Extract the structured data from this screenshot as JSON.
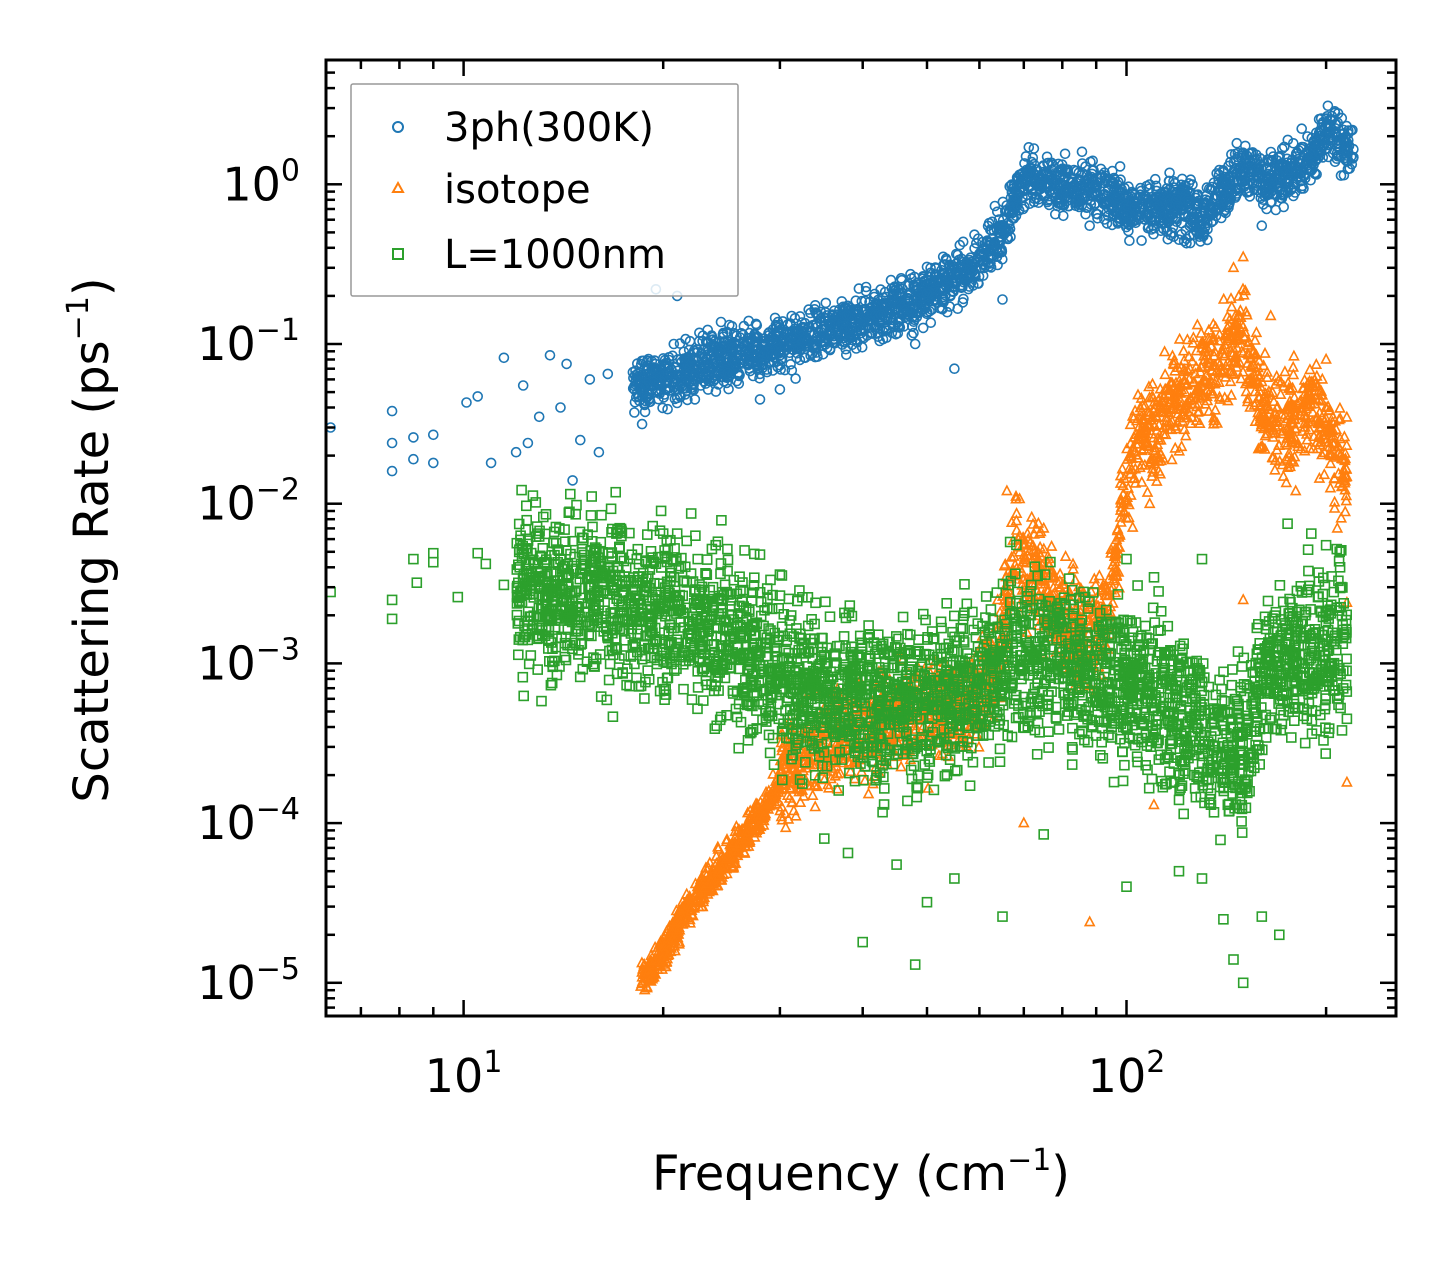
{
  "chart_data": {
    "type": "scatter",
    "xscale": "log",
    "yscale": "log",
    "xlim": [
      6.2,
      255
    ],
    "ylim": [
      6.2e-06,
      6.0
    ],
    "xlabel": {
      "main": "Frequency (cm",
      "sup": "−1",
      "end": ")"
    },
    "ylabel": {
      "main": "Scattering Rate (ps",
      "sup": "−1",
      "end": ")"
    },
    "xticks": [
      {
        "value": 10,
        "base": "10",
        "exp": "1"
      },
      {
        "value": 100,
        "base": "10",
        "exp": "2"
      }
    ],
    "yticks": [
      {
        "value": 1,
        "base": "10",
        "exp": "0"
      },
      {
        "value": 0.1,
        "base": "10",
        "exp": "−1"
      },
      {
        "value": 0.01,
        "base": "10",
        "exp": "−2"
      },
      {
        "value": 0.001,
        "base": "10",
        "exp": "−3"
      },
      {
        "value": 0.0001,
        "base": "10",
        "exp": "−4"
      },
      {
        "value": 1e-05,
        "base": "10",
        "exp": "−5"
      }
    ],
    "legend_position": "top-left",
    "series": [
      {
        "name": "3ph(300K)",
        "marker": "circle",
        "color": "#1f77b4",
        "trend": [
          [
            6.3,
            0.02
          ],
          [
            8,
            0.025
          ],
          [
            10,
            0.04
          ],
          [
            14,
            0.05
          ],
          [
            18,
            0.055
          ],
          [
            20,
            0.06
          ],
          [
            25,
            0.08
          ],
          [
            30,
            0.1
          ],
          [
            40,
            0.14
          ],
          [
            50,
            0.2
          ],
          [
            60,
            0.32
          ],
          [
            65,
            0.5
          ],
          [
            70,
            1.1
          ],
          [
            75,
            1.0
          ],
          [
            90,
            0.95
          ],
          [
            100,
            0.7
          ],
          [
            120,
            0.75
          ],
          [
            130,
            0.6
          ],
          [
            140,
            0.9
          ],
          [
            150,
            1.3
          ],
          [
            160,
            1.0
          ],
          [
            175,
            1.2
          ],
          [
            190,
            1.4
          ],
          [
            200,
            2.2
          ],
          [
            220,
            1.5
          ]
        ],
        "points": [
          [
            6.3,
            0.03
          ],
          [
            7.8,
            0.038
          ],
          [
            7.8,
            0.024
          ],
          [
            7.8,
            0.016
          ],
          [
            8.4,
            0.026
          ],
          [
            8.4,
            0.019
          ],
          [
            9.0,
            0.027
          ],
          [
            9.0,
            0.018
          ],
          [
            10.1,
            0.043
          ],
          [
            10.5,
            0.047
          ],
          [
            11.0,
            0.018
          ],
          [
            11.5,
            0.082
          ],
          [
            12.0,
            0.021
          ],
          [
            12.3,
            0.055
          ],
          [
            12.5,
            0.024
          ],
          [
            13.0,
            0.035
          ],
          [
            13.5,
            0.085
          ],
          [
            14.0,
            0.04
          ],
          [
            14.3,
            0.075
          ],
          [
            14.6,
            0.014
          ],
          [
            15.0,
            0.025
          ],
          [
            15.5,
            0.06
          ],
          [
            16.0,
            0.021
          ],
          [
            16.5,
            0.065
          ],
          [
            19.5,
            0.22
          ],
          [
            21.0,
            0.2
          ],
          [
            28.0,
            0.045
          ],
          [
            30.0,
            0.052
          ],
          [
            48.0,
            0.1
          ],
          [
            55.0,
            0.07
          ],
          [
            65.0,
            0.19
          ],
          [
            88.0,
            0.55
          ],
          [
            120.0,
            0.45
          ],
          [
            160.0,
            0.55
          ]
        ]
      },
      {
        "name": "isotope",
        "marker": "triangle",
        "color": "#ff7f0e",
        "trend": [
          [
            18.5,
            1e-05
          ],
          [
            20,
            1.6e-05
          ],
          [
            22,
            3e-05
          ],
          [
            25,
            6e-05
          ],
          [
            28,
            0.00011
          ],
          [
            30,
            0.00018
          ],
          [
            33,
            0.00025
          ],
          [
            36,
            0.00032
          ],
          [
            40,
            0.00038
          ],
          [
            45,
            0.00045
          ],
          [
            50,
            0.0005
          ],
          [
            55,
            0.00055
          ],
          [
            60,
            0.0006
          ],
          [
            64,
            0.0012
          ],
          [
            66,
            0.0025
          ],
          [
            68,
            0.006
          ],
          [
            70,
            0.004
          ],
          [
            75,
            0.003
          ],
          [
            80,
            0.002
          ],
          [
            85,
            0.0015
          ],
          [
            90,
            0.0015
          ],
          [
            95,
            0.003
          ],
          [
            100,
            0.015
          ],
          [
            105,
            0.025
          ],
          [
            110,
            0.028
          ],
          [
            120,
            0.05
          ],
          [
            130,
            0.06
          ],
          [
            140,
            0.08
          ],
          [
            150,
            0.12
          ],
          [
            160,
            0.04
          ],
          [
            170,
            0.03
          ],
          [
            180,
            0.035
          ],
          [
            190,
            0.04
          ],
          [
            200,
            0.03
          ],
          [
            215,
            0.015
          ]
        ],
        "points": [
          [
            66,
            0.012
          ],
          [
            75,
            0.007
          ],
          [
            88,
            2.4e-05
          ],
          [
            110,
            0.00013
          ],
          [
            145,
            0.3
          ],
          [
            148,
            0.15
          ],
          [
            150,
            0.35
          ],
          [
            165,
            0.15
          ],
          [
            180,
            0.012
          ],
          [
            200,
            0.08
          ],
          [
            208,
            0.007
          ],
          [
            215,
            0.0024
          ],
          [
            215,
            0.00018
          ],
          [
            70,
            0.0001
          ],
          [
            150,
            0.0025
          ]
        ]
      },
      {
        "name": "L=1000nm",
        "marker": "square",
        "color": "#2ca02c",
        "trend": [
          [
            12,
            0.003
          ],
          [
            15,
            0.0028
          ],
          [
            18,
            0.0025
          ],
          [
            20,
            0.0022
          ],
          [
            25,
            0.0015
          ],
          [
            28,
            0.001
          ],
          [
            30,
            0.00085
          ],
          [
            35,
            0.0007
          ],
          [
            40,
            0.0006
          ],
          [
            50,
            0.0006
          ],
          [
            60,
            0.00075
          ],
          [
            70,
            0.0012
          ],
          [
            80,
            0.001
          ],
          [
            90,
            0.0008
          ],
          [
            100,
            0.0007
          ],
          [
            120,
            0.0005
          ],
          [
            130,
            0.0004
          ],
          [
            140,
            0.00025
          ],
          [
            150,
            0.0003
          ],
          [
            160,
            0.0008
          ],
          [
            180,
            0.0012
          ],
          [
            200,
            0.001
          ],
          [
            215,
            0.0015
          ]
        ],
        "points": [
          [
            6.3,
            0.0028
          ],
          [
            7.8,
            0.0025
          ],
          [
            7.8,
            0.0019
          ],
          [
            8.4,
            0.0045
          ],
          [
            8.5,
            0.0032
          ],
          [
            9.0,
            0.0049
          ],
          [
            9.0,
            0.0043
          ],
          [
            9.8,
            0.0026
          ],
          [
            10.5,
            0.0049
          ],
          [
            10.8,
            0.0042
          ],
          [
            11.5,
            0.0031
          ],
          [
            13.0,
            0.0035
          ],
          [
            14.0,
            0.0045
          ],
          [
            16.0,
            0.005
          ],
          [
            17.0,
            0.0065
          ],
          [
            18.0,
            0.0013
          ],
          [
            20.0,
            0.0065
          ],
          [
            21.0,
            0.0065
          ],
          [
            24.0,
            0.0055
          ],
          [
            25.0,
            0.0052
          ],
          [
            28.0,
            0.0048
          ],
          [
            30.0,
            0.0036
          ],
          [
            35.0,
            8e-05
          ],
          [
            38.0,
            6.5e-05
          ],
          [
            40.0,
            1.8e-05
          ],
          [
            45.0,
            5.5e-05
          ],
          [
            48.0,
            1.3e-05
          ],
          [
            50.0,
            3.2e-05
          ],
          [
            55.0,
            4.5e-05
          ],
          [
            65.0,
            2.6e-05
          ],
          [
            75.0,
            8.5e-05
          ],
          [
            100.0,
            4e-05
          ],
          [
            120.0,
            5e-05
          ],
          [
            130.0,
            4.5e-05
          ],
          [
            140.0,
            2.5e-05
          ],
          [
            145.0,
            1.4e-05
          ],
          [
            150.0,
            1e-05
          ],
          [
            160.0,
            2.6e-05
          ],
          [
            170.0,
            2e-05
          ],
          [
            175.0,
            0.0075
          ],
          [
            190.0,
            0.0065
          ],
          [
            200.0,
            0.0055
          ],
          [
            210.0,
            0.004
          ],
          [
            215.0,
            0.00045
          ],
          [
            130.0,
            0.0045
          ],
          [
            100.0,
            0.0045
          ]
        ]
      }
    ]
  }
}
